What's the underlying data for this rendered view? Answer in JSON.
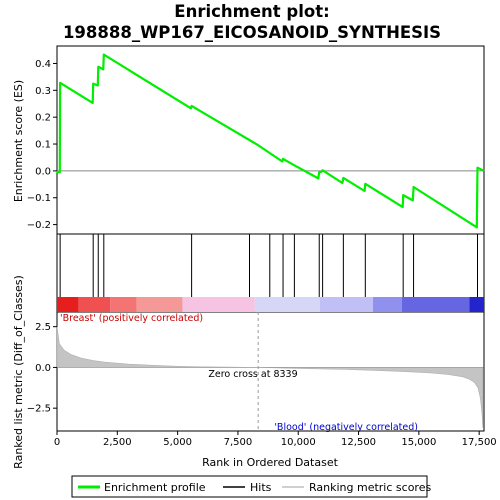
{
  "chart_data": {
    "type": "line",
    "title_lines": [
      "Enrichment plot:",
      "198888_WP167_EICOSANOID_SYNTHESIS"
    ],
    "xlabel": "Rank in Ordered Dataset",
    "top_panel": {
      "ylabel": "Enrichment score (ES)",
      "ylim": [
        -0.235,
        0.465
      ],
      "yticks": [
        -0.2,
        -0.1,
        0.0,
        0.1,
        0.2,
        0.3,
        0.4
      ],
      "ytick_labels": [
        "−0.2",
        "−0.1",
        "0.0",
        "0.1",
        "0.2",
        "0.3",
        "0.4"
      ],
      "series": [
        {
          "name": "Enrichment profile",
          "color": "#00ee00",
          "x": [
            0,
            10,
            115,
            130,
            1480,
            1500,
            1690,
            1710,
            1920,
            1940,
            5550,
            5580,
            8330,
            9340,
            9370,
            9790,
            10830,
            10870,
            10970,
            11010,
            11830,
            11870,
            12750,
            12780,
            14330,
            14350,
            14750,
            14780,
            17400,
            17430,
            17700
          ],
          "y": [
            0.0,
            -0.005,
            -0.005,
            0.328,
            0.253,
            0.325,
            0.318,
            0.388,
            0.378,
            0.433,
            0.233,
            0.242,
            0.096,
            0.035,
            0.045,
            0.023,
            -0.028,
            -0.005,
            -0.003,
            0.002,
            -0.045,
            -0.026,
            -0.075,
            -0.048,
            -0.135,
            -0.09,
            -0.11,
            -0.06,
            -0.21,
            0.012,
            0.0
          ]
        }
      ],
      "grid": false
    },
    "hits_panel": {
      "hit_ranks": [
        130,
        1500,
        1710,
        1940,
        5580,
        7980,
        8820,
        9370,
        9840,
        10870,
        11010,
        11870,
        12780,
        14350,
        14780,
        17430
      ]
    },
    "bottom_panel": {
      "ylabel": "Ranked list metric (Diff_of_Classes)",
      "ylim": [
        -3.9,
        3.4
      ],
      "yticks": [
        -2.5,
        0.0,
        2.5
      ],
      "ytick_labels": [
        "−2.5",
        "0.0",
        "2.5"
      ],
      "metric_curve": {
        "x": [
          0,
          100,
          300,
          600,
          1000,
          1500,
          2000,
          3000,
          4000,
          5000,
          6000,
          7000,
          8339,
          10000,
          12000,
          13500,
          14500,
          15500,
          16200,
          16800,
          17100,
          17300,
          17450,
          17550,
          17620,
          17650
        ],
        "y": [
          2.5,
          1.45,
          1.05,
          0.78,
          0.58,
          0.42,
          0.32,
          0.2,
          0.13,
          0.07,
          0.04,
          0.02,
          0.0,
          -0.06,
          -0.13,
          -0.2,
          -0.26,
          -0.34,
          -0.43,
          -0.57,
          -0.72,
          -0.92,
          -1.25,
          -1.9,
          -2.9,
          -3.7
        ]
      },
      "zero_cross_label": "Zero cross at 8339",
      "zero_cross_rank": 8339,
      "positive_label": "'Breast' (positively correlated)",
      "negative_label": "'Blood' (negatively correlated)",
      "positive_color": "#cc0000",
      "negative_color": "#0000cc"
    },
    "xlim": [
      0,
      17700
    ],
    "xticks": [
      0,
      2500,
      5000,
      7500,
      10000,
      12500,
      15000,
      17500
    ],
    "xtick_labels": [
      "0",
      "2,500",
      "5,000",
      "7,500",
      "10,000",
      "12,500",
      "15,000",
      "17,500"
    ],
    "heatmap_bar": {
      "segments": [
        {
          "end": 900,
          "color": "#e61e1e"
        },
        {
          "end": 2200,
          "color": "#f05050"
        },
        {
          "end": 3300,
          "color": "#f47474"
        },
        {
          "end": 5200,
          "color": "#f59898"
        },
        {
          "end": 8200,
          "color": "#f7c3e2"
        },
        {
          "end": 10900,
          "color": "#d6d6f6"
        },
        {
          "end": 13100,
          "color": "#c0c0f6"
        },
        {
          "end": 14300,
          "color": "#9090ee"
        },
        {
          "end": 17100,
          "color": "#6666e2"
        },
        {
          "end": 17700,
          "color": "#2424cc"
        }
      ]
    },
    "legend": {
      "items": [
        {
          "label": "Enrichment profile",
          "color": "#00ee00"
        },
        {
          "label": "Hits",
          "color": "#000000"
        },
        {
          "label": "Ranking metric scores",
          "color": "#c0c0c0"
        }
      ]
    }
  }
}
